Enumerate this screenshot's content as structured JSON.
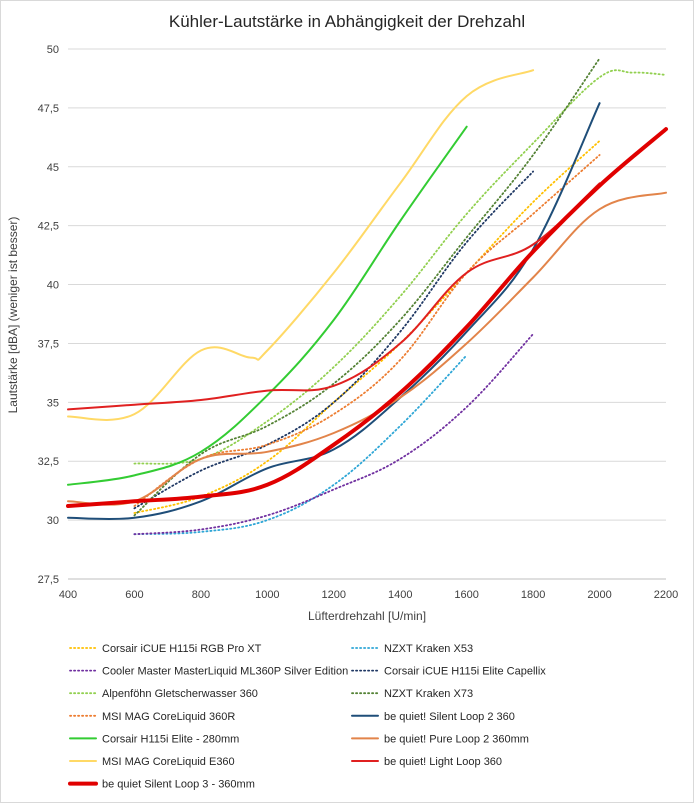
{
  "chart_data": {
    "type": "line",
    "title": "Kühler-Lautstärke in Abhängigkeit der Drehzahl",
    "xlabel": "Lüfterdrehzahl [U/min]",
    "ylabel": "Lautstärke [dBA] (weniger ist besser)",
    "xlim": [
      400,
      2200
    ],
    "ylim": [
      27.5,
      50
    ],
    "xticks": [
      400,
      600,
      800,
      1000,
      1200,
      1400,
      1600,
      1800,
      2000,
      2200
    ],
    "yticks": [
      27.5,
      30,
      32.5,
      35,
      37.5,
      40,
      42.5,
      45,
      47.5,
      50
    ],
    "ytick_labels": [
      "27,5",
      "30",
      "32,5",
      "35",
      "37,5",
      "40",
      "42,5",
      "45",
      "47,5",
      "50"
    ],
    "grid": "horizontal",
    "legend_position": "bottom",
    "series": [
      {
        "name": "Corsair iCUE H115i RGB Pro XT",
        "color": "#FFC000",
        "style": "dotted",
        "width": 1.5,
        "x": [
          600,
          800,
          1000,
          1200,
          1400,
          1600,
          1800,
          2000
        ],
        "y": [
          30.3,
          31.0,
          32.5,
          35.0,
          37.5,
          40.5,
          43.5,
          46.1
        ]
      },
      {
        "name": "NZXT Kraken X53",
        "color": "#2EA6D6",
        "style": "dotted",
        "width": 1.5,
        "x": [
          600,
          800,
          1000,
          1200,
          1400,
          1600
        ],
        "y": [
          29.4,
          29.5,
          30.0,
          31.5,
          34.0,
          37.0
        ]
      },
      {
        "name": "Cooler Master MasterLiquid ML360P Silver Edition",
        "color": "#7030A0",
        "style": "dotted",
        "width": 1.5,
        "x": [
          600,
          800,
          1000,
          1200,
          1400,
          1600,
          1800
        ],
        "y": [
          29.4,
          29.6,
          30.2,
          31.3,
          32.6,
          34.8,
          37.9
        ]
      },
      {
        "name": "Corsair iCUE H115i Elite Capellix",
        "color": "#1F3864",
        "style": "dotted",
        "width": 1.5,
        "x": [
          600,
          800,
          1000,
          1200,
          1400,
          1600,
          1800
        ],
        "y": [
          30.5,
          32.1,
          33.2,
          35.0,
          38.0,
          41.8,
          44.8
        ]
      },
      {
        "name": "Alpenföhn Gletscherwasser 360",
        "color": "#92D050",
        "style": "dotted",
        "width": 1.5,
        "x": [
          600,
          800,
          1000,
          1200,
          1400,
          1600,
          1800,
          2000,
          2100,
          2200
        ],
        "y": [
          32.4,
          32.6,
          34.2,
          36.5,
          39.5,
          43.0,
          46.0,
          48.8,
          49.0,
          48.9
        ]
      },
      {
        "name": "NZXT Kraken X73",
        "color": "#548235",
        "style": "dotted",
        "width": 1.5,
        "x": [
          600,
          800,
          1000,
          1200,
          1400,
          1600,
          1800,
          2000
        ],
        "y": [
          30.2,
          32.8,
          34.0,
          35.8,
          38.5,
          42.0,
          45.5,
          49.6
        ]
      },
      {
        "name": "MSI MAG CoreLiquid 360R",
        "color": "#ED7D31",
        "style": "dotted",
        "width": 1.5,
        "x": [
          600,
          800,
          1000,
          1200,
          1400,
          1600,
          1800,
          2000
        ],
        "y": [
          30.6,
          32.6,
          33.2,
          34.5,
          36.8,
          40.5,
          43.0,
          45.5
        ]
      },
      {
        "name": "be quiet! Silent Loop 2 360",
        "color": "#1F4E79",
        "style": "solid",
        "width": 2,
        "x": [
          400,
          600,
          800,
          1000,
          1200,
          1400,
          1600,
          1800,
          2000
        ],
        "y": [
          30.1,
          30.1,
          30.8,
          32.2,
          33.0,
          35.2,
          38.0,
          41.5,
          47.7
        ]
      },
      {
        "name": "Corsair H115i Elite - 280mm",
        "color": "#33CC33",
        "style": "solid",
        "width": 2,
        "x": [
          400,
          600,
          800,
          1000,
          1200,
          1400,
          1600
        ],
        "y": [
          31.5,
          31.9,
          32.9,
          35.3,
          38.5,
          42.7,
          46.7
        ]
      },
      {
        "name": "be quiet! Pure Loop 2 360mm",
        "color": "#E2844A",
        "style": "solid",
        "width": 2,
        "x": [
          400,
          600,
          800,
          1000,
          1200,
          1400,
          1600,
          1800,
          2000,
          2200
        ],
        "y": [
          30.8,
          30.8,
          32.6,
          32.9,
          33.7,
          35.2,
          37.5,
          40.3,
          43.2,
          43.9
        ]
      },
      {
        "name": "MSI MAG CoreLiquid E360",
        "color": "#FFD966",
        "style": "solid",
        "width": 2,
        "x": [
          400,
          600,
          800,
          950,
          1000,
          1200,
          1400,
          1600,
          1800
        ],
        "y": [
          34.4,
          34.5,
          37.2,
          36.9,
          37.2,
          40.5,
          44.3,
          48.0,
          49.1
        ]
      },
      {
        "name": "be quiet! Light Loop 360",
        "color": "#E02020",
        "style": "solid",
        "width": 2,
        "x": [
          400,
          600,
          800,
          1000,
          1200,
          1400,
          1600,
          1800,
          2000
        ],
        "y": [
          34.7,
          34.9,
          35.1,
          35.5,
          35.7,
          37.5,
          40.5,
          41.7,
          44.3
        ]
      },
      {
        "name": "be quiet Silent Loop 3 - 360mm",
        "color": "#E00000",
        "style": "solid",
        "width": 4,
        "x": [
          400,
          600,
          800,
          1000,
          1200,
          1400,
          1600,
          1800,
          2000,
          2200
        ],
        "y": [
          30.6,
          30.8,
          31.0,
          31.5,
          33.2,
          35.4,
          38.2,
          41.4,
          44.2,
          46.6
        ]
      }
    ]
  }
}
